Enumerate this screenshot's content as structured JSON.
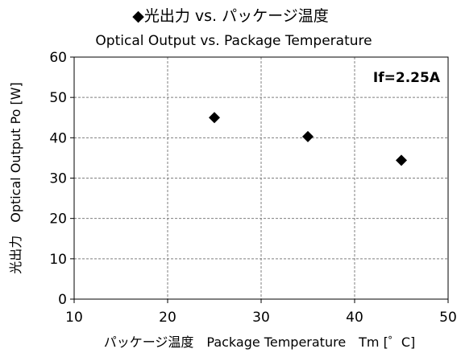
{
  "chart_data": {
    "type": "scatter",
    "title": "◆光出力 vs. パッケージ温度",
    "subtitle": "Optical Output vs. Package Temperature",
    "xlabel": "パッケージ温度　Package Temperature　Tm [゜C]",
    "ylabel": "光出力　Optical Output Po [W]",
    "annotation": "If=2.25A",
    "xlim": [
      10,
      50
    ],
    "ylim": [
      0,
      60
    ],
    "x_ticks": [
      10,
      20,
      30,
      40,
      50
    ],
    "y_ticks": [
      0,
      10,
      20,
      30,
      40,
      50,
      60
    ],
    "grid": true,
    "marker": "diamond",
    "marker_color": "#000000",
    "series": [
      {
        "x": [
          25,
          35,
          45
        ],
        "y": [
          45,
          40.3,
          34.4
        ]
      }
    ]
  }
}
